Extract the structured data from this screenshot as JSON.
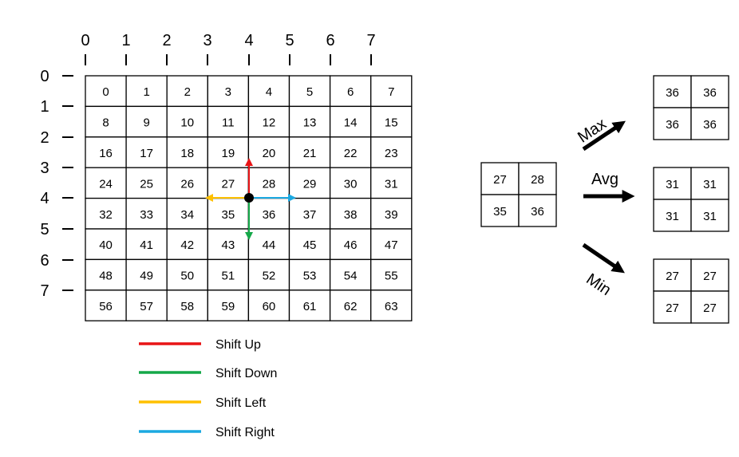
{
  "axis": {
    "columns": [
      "0",
      "1",
      "2",
      "3",
      "4",
      "5",
      "6",
      "7"
    ],
    "rows": [
      "0",
      "1",
      "2",
      "3",
      "4",
      "5",
      "6",
      "7"
    ]
  },
  "grid": {
    "cells": [
      [
        "0",
        "1",
        "2",
        "3",
        "4",
        "5",
        "6",
        "7"
      ],
      [
        "8",
        "9",
        "10",
        "11",
        "12",
        "13",
        "14",
        "15"
      ],
      [
        "16",
        "17",
        "18",
        "19",
        "20",
        "21",
        "22",
        "23"
      ],
      [
        "24",
        "25",
        "26",
        "27",
        "28",
        "29",
        "30",
        "31"
      ],
      [
        "32",
        "33",
        "34",
        "35",
        "36",
        "37",
        "38",
        "39"
      ],
      [
        "40",
        "41",
        "42",
        "43",
        "44",
        "45",
        "46",
        "47"
      ],
      [
        "48",
        "49",
        "50",
        "51",
        "52",
        "53",
        "54",
        "55"
      ],
      [
        "56",
        "57",
        "58",
        "59",
        "60",
        "61",
        "62",
        "63"
      ]
    ],
    "center_point": {
      "col": 4,
      "row": 4
    }
  },
  "window": {
    "cells": [
      [
        "27",
        "28"
      ],
      [
        "35",
        "36"
      ]
    ]
  },
  "operations": [
    {
      "label": "Max",
      "cells": [
        [
          "36",
          "36"
        ],
        [
          "36",
          "36"
        ]
      ]
    },
    {
      "label": "Avg",
      "cells": [
        [
          "31",
          "31"
        ],
        [
          "31",
          "31"
        ]
      ]
    },
    {
      "label": "Min",
      "cells": [
        [
          "27",
          "27"
        ],
        [
          "27",
          "27"
        ]
      ]
    }
  ],
  "legend": [
    {
      "label": "Shift Up",
      "color": "#e81416"
    },
    {
      "label": "Shift Down",
      "color": "#15a849"
    },
    {
      "label": "Shift Left",
      "color": "#ffc000"
    },
    {
      "label": "Shift Right",
      "color": "#1ba9e1"
    }
  ],
  "colors": {
    "up": "#e81416",
    "down": "#15a849",
    "left": "#ffc000",
    "right": "#1ba9e1"
  }
}
